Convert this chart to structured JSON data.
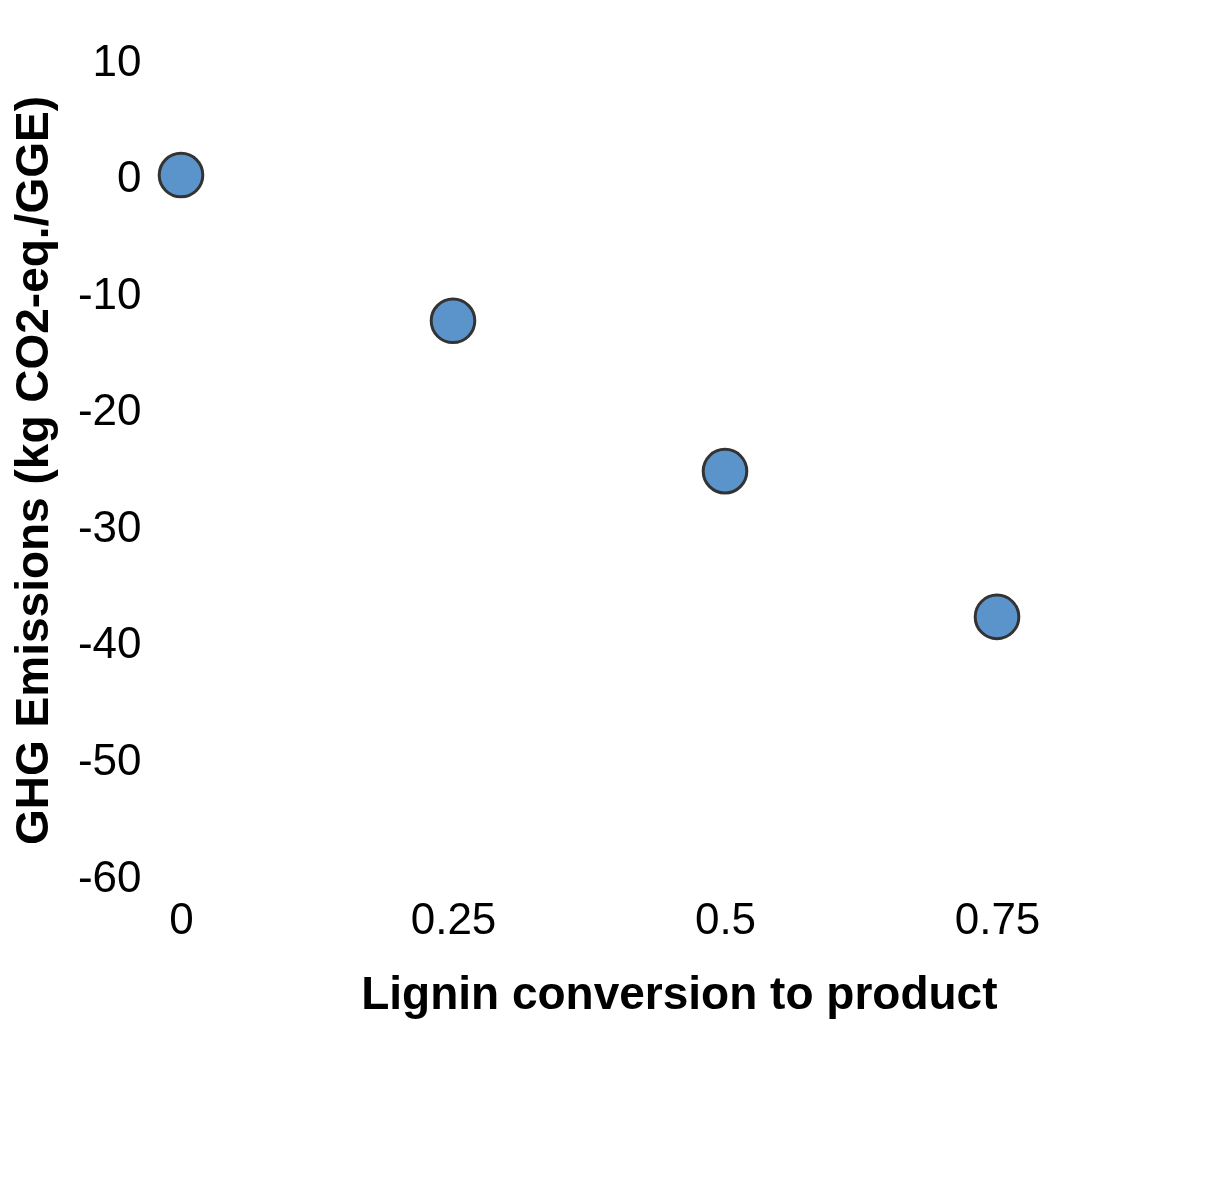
{
  "chart_data": {
    "type": "scatter",
    "xlabel": "Lignin conversion to product",
    "ylabel": "GHG Emissions (kg CO2-eq./GGE)",
    "x": [
      0,
      0.25,
      0.5,
      0.75
    ],
    "series": [
      {
        "color": "#5b93cb",
        "values": [
          0.3,
          -12.2,
          -25.1,
          -37.6
        ]
      }
    ],
    "xlim": [
      0,
      0.75
    ],
    "ylim": [
      -60,
      10
    ],
    "xticks": [
      0,
      0.25,
      0.5,
      0.75
    ],
    "yticks": [
      10,
      0,
      -10,
      -20,
      -30,
      -40,
      -50,
      -60
    ],
    "grid": false,
    "legend": false,
    "marker": "circle"
  }
}
